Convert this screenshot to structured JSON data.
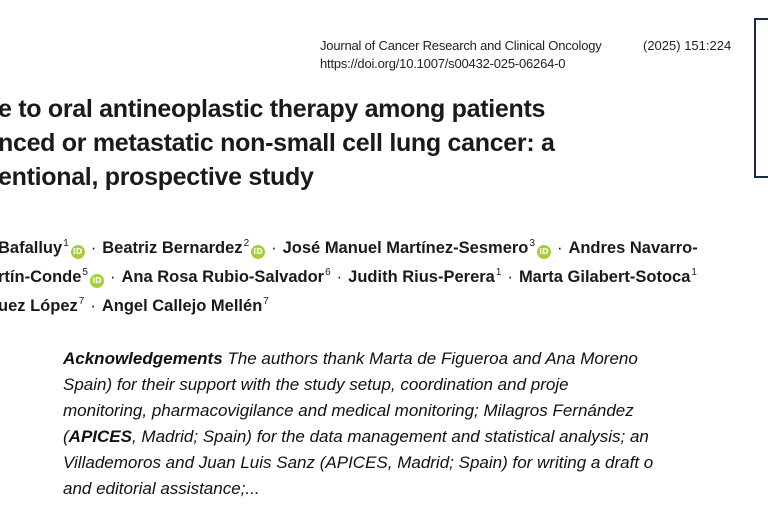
{
  "journal": {
    "name": "Journal of Cancer Research and Clinical Oncology",
    "citation": "(2025) 151:224",
    "doi": "https://doi.org/10.1007/s00432-025-06264-0"
  },
  "title_lines": [
    "e to oral antineoplastic therapy among patients",
    "nced or metastatic non-small cell lung cancer: a",
    "entional, prospective study"
  ],
  "authors": {
    "row1": [
      {
        "name": "Bafalluy",
        "sup": "1",
        "orcid": true
      },
      {
        "name": "Beatriz Bernardez",
        "sup": "2",
        "orcid": true
      },
      {
        "name": "José Manuel Martínez-Sesmero",
        "sup": "3",
        "orcid": true
      },
      {
        "name": "Andres Navarro-",
        "sup": "",
        "orcid": false
      }
    ],
    "row2": [
      {
        "name": "rtín-Conde",
        "sup": "5",
        "orcid": true
      },
      {
        "name": "Ana Rosa Rubio-Salvador",
        "sup": "6",
        "orcid": false
      },
      {
        "name": "Judith Rius-Perera",
        "sup": "1",
        "orcid": false
      },
      {
        "name": "Marta Gilabert-Sotoca",
        "sup": "1",
        "orcid": false
      }
    ],
    "row3": [
      {
        "name": "uez López",
        "sup": "7",
        "orcid": false
      },
      {
        "name": "Angel Callejo Mellén",
        "sup": "7",
        "orcid": false
      }
    ],
    "separator": "·",
    "orcid_label": "iD"
  },
  "acknowledgements": {
    "heading": "Acknowledgements",
    "line1_rest": " The authors thank Marta de Figueroa and Ana Moreno",
    "line2": "Spain) for their support with the study setup, coordination and proje",
    "line3": "monitoring, pharmacovigilance and medical monitoring; Milagros Fernández",
    "line4_open": "(",
    "line4_bold": "APICES",
    "line4_rest": ", Madrid; Spain) for the data management and statistical analysis; an",
    "line5": "Villademoros and Juan Luis Sanz (APICES, Madrid; Spain) for writing a draft o",
    "line6": "and editorial assistance;..."
  }
}
